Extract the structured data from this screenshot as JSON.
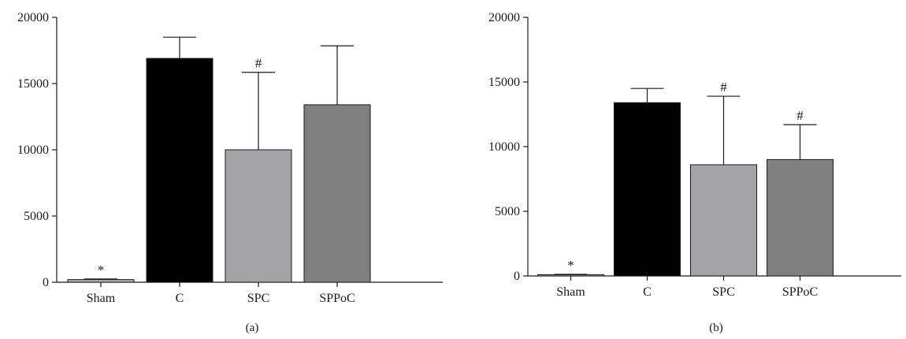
{
  "chart_data": [
    {
      "type": "bar",
      "panel_label": "(a)",
      "categories": [
        "Sham",
        "C",
        "SPC",
        "SPPoC"
      ],
      "values": [
        200,
        16900,
        10000,
        13400
      ],
      "error_upper": [
        250,
        18500,
        15850,
        17850
      ],
      "markers": [
        "*",
        "",
        "#",
        ""
      ],
      "colors": [
        "#b0b0b0",
        "#000000",
        "#a4a4a8",
        "#808080"
      ],
      "ylim": [
        0,
        20000
      ],
      "yticks": [
        "0",
        "5000",
        "10000",
        "15000",
        "20000"
      ],
      "ytick_values": [
        0,
        5000,
        10000,
        15000,
        20000
      ],
      "grid": false,
      "title": "",
      "xlabel": "",
      "ylabel": ""
    },
    {
      "type": "bar",
      "panel_label": "(b)",
      "categories": [
        "Sham",
        "C",
        "SPC",
        "SPPoC"
      ],
      "values": [
        60,
        13400,
        8600,
        9000
      ],
      "error_upper": [
        120,
        14500,
        13900,
        11700
      ],
      "markers": [
        "*",
        "",
        "#",
        "#"
      ],
      "colors": [
        "#b0b0b0",
        "#000000",
        "#a4a4a8",
        "#808080"
      ],
      "ylim": [
        0,
        20000
      ],
      "yticks": [
        "0",
        "5000",
        "10000",
        "15000",
        "20000"
      ],
      "ytick_values": [
        0,
        5000,
        10000,
        15000,
        20000
      ],
      "grid": false,
      "title": "",
      "xlabel": "",
      "ylabel": ""
    }
  ]
}
